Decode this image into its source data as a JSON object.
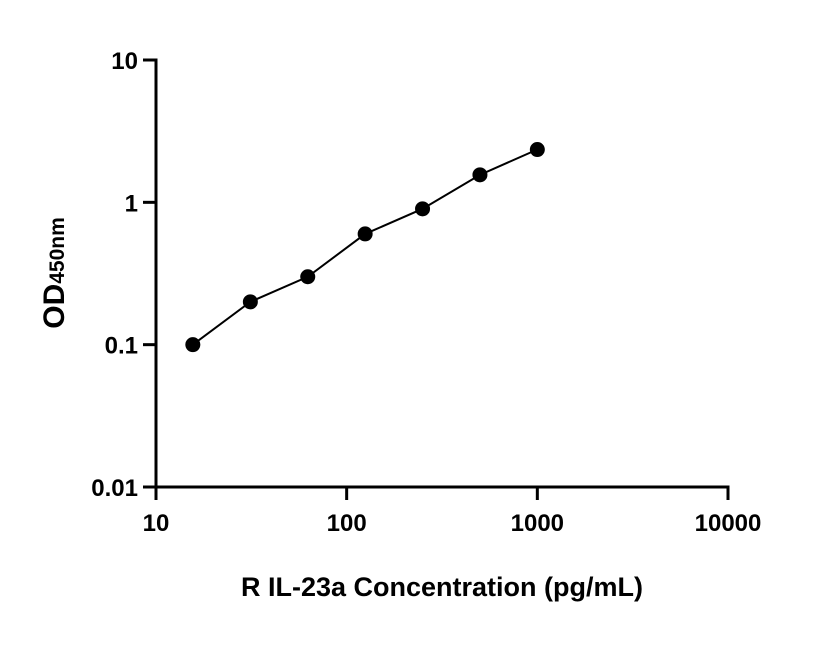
{
  "chart_data": {
    "type": "scatter",
    "title": "",
    "xlabel": "R IL-23a Concentration (pg/mL)",
    "ylabel_main": "OD",
    "ylabel_sub": "450nm",
    "x_scale": "log",
    "y_scale": "log",
    "xlim": [
      10,
      10000
    ],
    "ylim": [
      0.01,
      10
    ],
    "x_ticks": [
      "10",
      "100",
      "1000",
      "10000"
    ],
    "y_ticks": [
      "0.01",
      "0.1",
      "1",
      "10"
    ],
    "grid": false,
    "fit_line": true,
    "series": [
      {
        "x": [
          15.6,
          31.25,
          62.5,
          125,
          250,
          500,
          1000
        ],
        "y": [
          0.1,
          0.2,
          0.3,
          0.6,
          0.9,
          1.56,
          2.35
        ]
      }
    ],
    "color": "#000000"
  }
}
